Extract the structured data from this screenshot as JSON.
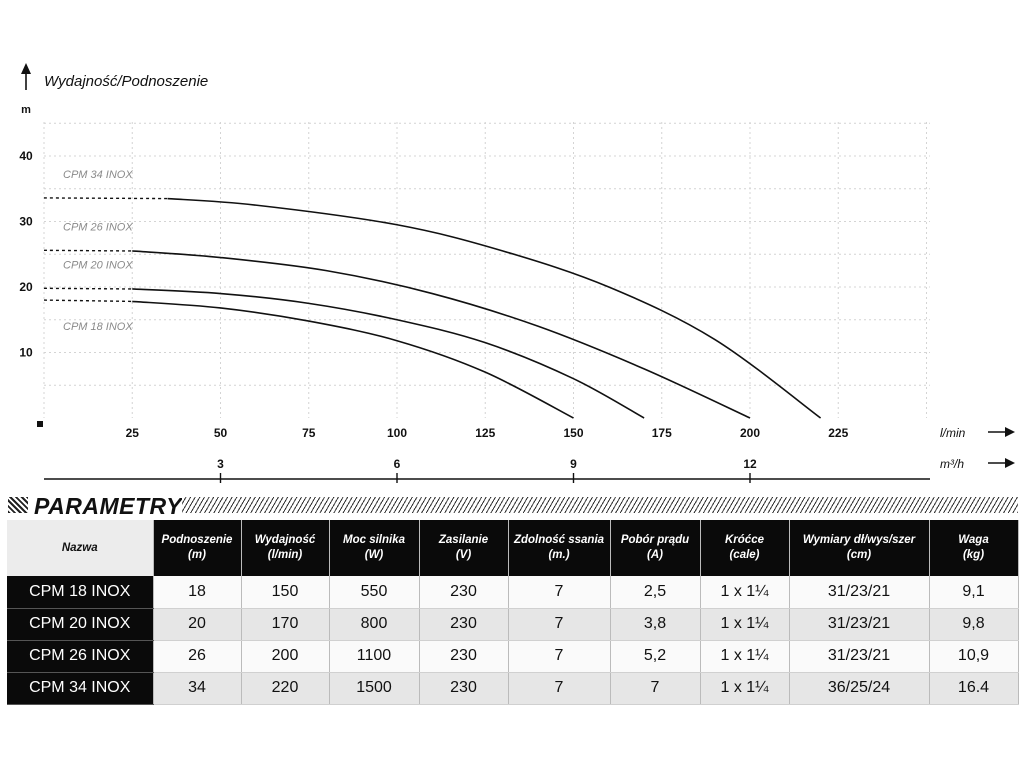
{
  "chart_data": {
    "type": "line",
    "title": "Wydajność/Podnoszenie",
    "ylabel": "m",
    "y_ticks": [
      "10",
      "20",
      "30",
      "40"
    ],
    "ylim": [
      0,
      45
    ],
    "xlabel": "l/min",
    "x_ticks": [
      "25",
      "50",
      "75",
      "100",
      "125",
      "150",
      "175",
      "200",
      "225"
    ],
    "xlim": [
      0,
      250
    ],
    "x2label": "m³/h",
    "x2_ticks": [
      "3",
      "6",
      "9",
      "12"
    ],
    "x2_tick_values_lmin": [
      50,
      100,
      150,
      200
    ],
    "grid": true,
    "series": [
      {
        "name": "CPM 34 INOX",
        "x": [
          0,
          35,
          60,
          100,
          130,
          160,
          190,
          220
        ],
        "y": [
          33.6,
          33.5,
          32.5,
          29.5,
          25.5,
          20.0,
          12.0,
          0
        ]
      },
      {
        "name": "CPM 26 INOX",
        "x": [
          0,
          25,
          50,
          80,
          110,
          140,
          170,
          200
        ],
        "y": [
          25.6,
          25.5,
          24.5,
          22.5,
          19.0,
          14.0,
          7.5,
          0
        ]
      },
      {
        "name": "CPM 20 INOX",
        "x": [
          0,
          25,
          50,
          75,
          100,
          125,
          150,
          170
        ],
        "y": [
          19.8,
          19.7,
          19.0,
          17.5,
          15.0,
          11.5,
          6.0,
          0
        ]
      },
      {
        "name": "CPM 18 INOX",
        "x": [
          0,
          25,
          50,
          75,
          100,
          125,
          150
        ],
        "y": [
          18.0,
          17.8,
          16.8,
          14.8,
          11.8,
          7.0,
          0
        ]
      }
    ],
    "curve_style": "dashed segment at low flow, solid beyond"
  },
  "parameters": {
    "title": "PARAMETRY",
    "columns": [
      {
        "label": "Nazwa",
        "unit": ""
      },
      {
        "label": "Podnoszenie",
        "unit": "(m)"
      },
      {
        "label": "Wydajność",
        "unit": "(l/min)"
      },
      {
        "label": "Moc silnika",
        "unit": "(W)"
      },
      {
        "label": "Zasilanie",
        "unit": "(V)"
      },
      {
        "label": "Zdolność ssania",
        "unit": "(m.)"
      },
      {
        "label": "Pobór prądu",
        "unit": "(A)"
      },
      {
        "label": "Króćce",
        "unit": "(cale)"
      },
      {
        "label": "Wymiary dł/wys/szer",
        "unit": "(cm)"
      },
      {
        "label": "Waga",
        "unit": "(kg)"
      }
    ],
    "rows": [
      [
        "CPM 18 INOX",
        "18",
        "150",
        "550",
        "230",
        "7",
        "2,5",
        "1 x 1¼",
        "31/23/21",
        "9,1"
      ],
      [
        "CPM 20 INOX",
        "20",
        "170",
        "800",
        "230",
        "7",
        "3,8",
        "1 x 1¼",
        "31/23/21",
        "9,8"
      ],
      [
        "CPM 26 INOX",
        "26",
        "200",
        "1100",
        "230",
        "7",
        "5,2",
        "1 x 1¼",
        "31/23/21",
        "10,9"
      ],
      [
        "CPM 34 INOX",
        "34",
        "220",
        "1500",
        "230",
        "7",
        "7",
        "1 x 1¼",
        "36/25/24",
        "16.4"
      ]
    ]
  }
}
